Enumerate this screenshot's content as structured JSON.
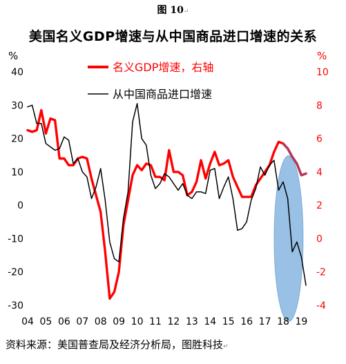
{
  "figure_label": "图 10",
  "source_note": "资料来源：美国普查局及经济分析局，图胜科技",
  "chart_data": {
    "type": "line",
    "title": "美国名义GDP增速与从中国商品进口增速的关系",
    "left_axis": {
      "unit": "%",
      "ylim": [
        -30,
        40
      ],
      "ticks": [
        40,
        30,
        20,
        10,
        0,
        -10,
        -20,
        -30
      ]
    },
    "right_axis": {
      "unit": "%",
      "ylim": [
        -4,
        10
      ],
      "ticks": [
        10,
        8,
        6,
        4,
        2,
        0,
        -2,
        -4
      ]
    },
    "x_axis": {
      "ticks": [
        "04",
        "05",
        "06",
        "07",
        "08",
        "09",
        "10",
        "11",
        "12",
        "13",
        "14",
        "15",
        "16",
        "17",
        "18",
        "19"
      ],
      "range": [
        2004,
        2019.4
      ]
    },
    "grid": false,
    "legend": {
      "placement": "top-center"
    },
    "annotation": {
      "type": "ellipse-highlight",
      "x_center": 2018.3,
      "y_center_left": -10,
      "color": "#5b9bd5"
    },
    "series": [
      {
        "name": "名义GDP增速，右轴",
        "axis": "right",
        "color": "#ff0000",
        "x": [
          2004.0,
          2004.25,
          2004.5,
          2004.75,
          2005.0,
          2005.25,
          2005.5,
          2005.75,
          2006.0,
          2006.25,
          2006.5,
          2006.75,
          2007.0,
          2007.25,
          2007.5,
          2007.75,
          2008.0,
          2008.25,
          2008.5,
          2008.75,
          2009.0,
          2009.25,
          2009.5,
          2009.75,
          2010.0,
          2010.25,
          2010.5,
          2010.75,
          2011.0,
          2011.25,
          2011.5,
          2011.75,
          2012.0,
          2012.25,
          2012.5,
          2012.75,
          2013.0,
          2013.25,
          2013.5,
          2013.75,
          2014.0,
          2014.25,
          2014.5,
          2014.75,
          2015.0,
          2015.25,
          2015.5,
          2015.75,
          2016.0,
          2016.25,
          2016.5,
          2016.75,
          2017.0,
          2017.25,
          2017.5,
          2017.75,
          2018.0,
          2018.25,
          2018.5,
          2018.75,
          2019.0,
          2019.25
        ],
        "values": [
          6.5,
          6.4,
          6.5,
          7.7,
          6.3,
          7.2,
          7.1,
          4.8,
          4.8,
          4.4,
          4.4,
          4.8,
          4.9,
          4.8,
          3.6,
          2.6,
          1.6,
          -0.8,
          -3.6,
          -3.2,
          -2.0,
          0.8,
          2.3,
          3.8,
          4.4,
          4.1,
          4.5,
          4.4,
          3.7,
          3.7,
          3.5,
          5.3,
          4.0,
          4.0,
          3.8,
          2.6,
          2.8,
          3.4,
          4.7,
          3.6,
          4.5,
          5.2,
          4.4,
          4.5,
          4.7,
          3.7,
          3.1,
          2.5,
          2.5,
          2.5,
          3.2,
          3.6,
          4.0,
          4.4,
          5.2,
          5.8,
          5.7,
          5.4,
          4.9,
          4.5,
          3.8,
          3.9
        ]
      },
      {
        "name": "从中国商品进口增速",
        "axis": "left",
        "color": "#000000",
        "x": [
          2004.0,
          2004.25,
          2004.5,
          2004.75,
          2005.0,
          2005.25,
          2005.5,
          2005.75,
          2006.0,
          2006.25,
          2006.5,
          2006.75,
          2007.0,
          2007.25,
          2007.5,
          2007.75,
          2008.0,
          2008.25,
          2008.5,
          2008.75,
          2009.0,
          2009.25,
          2009.5,
          2009.75,
          2010.0,
          2010.25,
          2010.5,
          2010.75,
          2011.0,
          2011.25,
          2011.5,
          2011.75,
          2012.0,
          2012.25,
          2012.5,
          2012.75,
          2013.0,
          2013.25,
          2013.5,
          2013.75,
          2014.0,
          2014.25,
          2014.5,
          2014.75,
          2015.0,
          2015.25,
          2015.5,
          2015.75,
          2016.0,
          2016.25,
          2016.5,
          2016.75,
          2017.0,
          2017.25,
          2017.5,
          2017.75,
          2018.0,
          2018.25,
          2018.5,
          2018.75,
          2019.0,
          2019.25
        ],
        "values": [
          29.5,
          30.0,
          24.5,
          24.5,
          18.5,
          17.5,
          16.5,
          17.0,
          20.5,
          19.5,
          12.5,
          14.0,
          10.0,
          8.5,
          2.0,
          5.5,
          11.0,
          1.5,
          -11.0,
          -16.0,
          -17.0,
          -4.0,
          4.0,
          25.0,
          30.5,
          20.0,
          18.0,
          9.0,
          5.0,
          6.5,
          9.5,
          8.5,
          6.5,
          4.5,
          6.5,
          3.0,
          2.0,
          4.0,
          4.0,
          3.5,
          10.5,
          11.0,
          2.0,
          5.5,
          8.5,
          2.0,
          -7.5,
          -7.0,
          -5.0,
          1.5,
          5.0,
          11.5,
          9.0,
          12.0,
          13.5,
          4.5,
          7.0,
          2.0,
          -14.0,
          -11.0,
          -15.5,
          -24.0
        ]
      }
    ]
  }
}
